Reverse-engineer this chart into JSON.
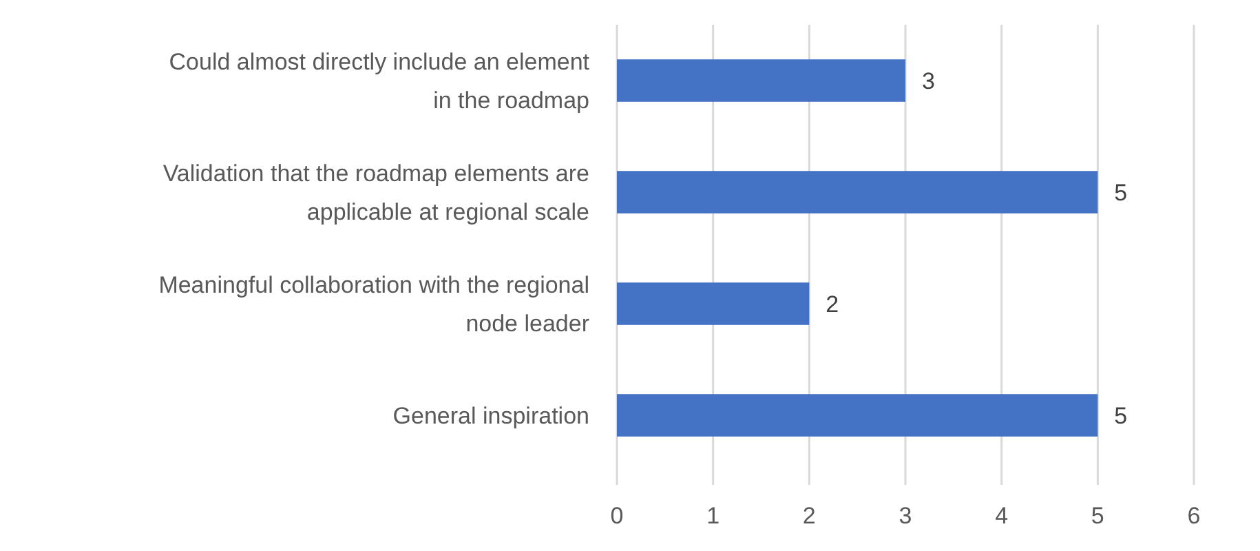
{
  "chart_data": {
    "type": "bar",
    "orientation": "horizontal",
    "categories": [
      "Could almost directly include an element in the roadmap",
      "Validation that the roadmap elements are applicable at regional scale",
      "Meaningful collaboration with the regional node leader",
      "General inspiration"
    ],
    "values": [
      3,
      5,
      2,
      5
    ],
    "color": "#4472c4",
    "xlim": [
      0,
      6
    ],
    "xticks": [
      0,
      1,
      2,
      3,
      4,
      5,
      6
    ],
    "grid": "x",
    "data_labels": true
  }
}
